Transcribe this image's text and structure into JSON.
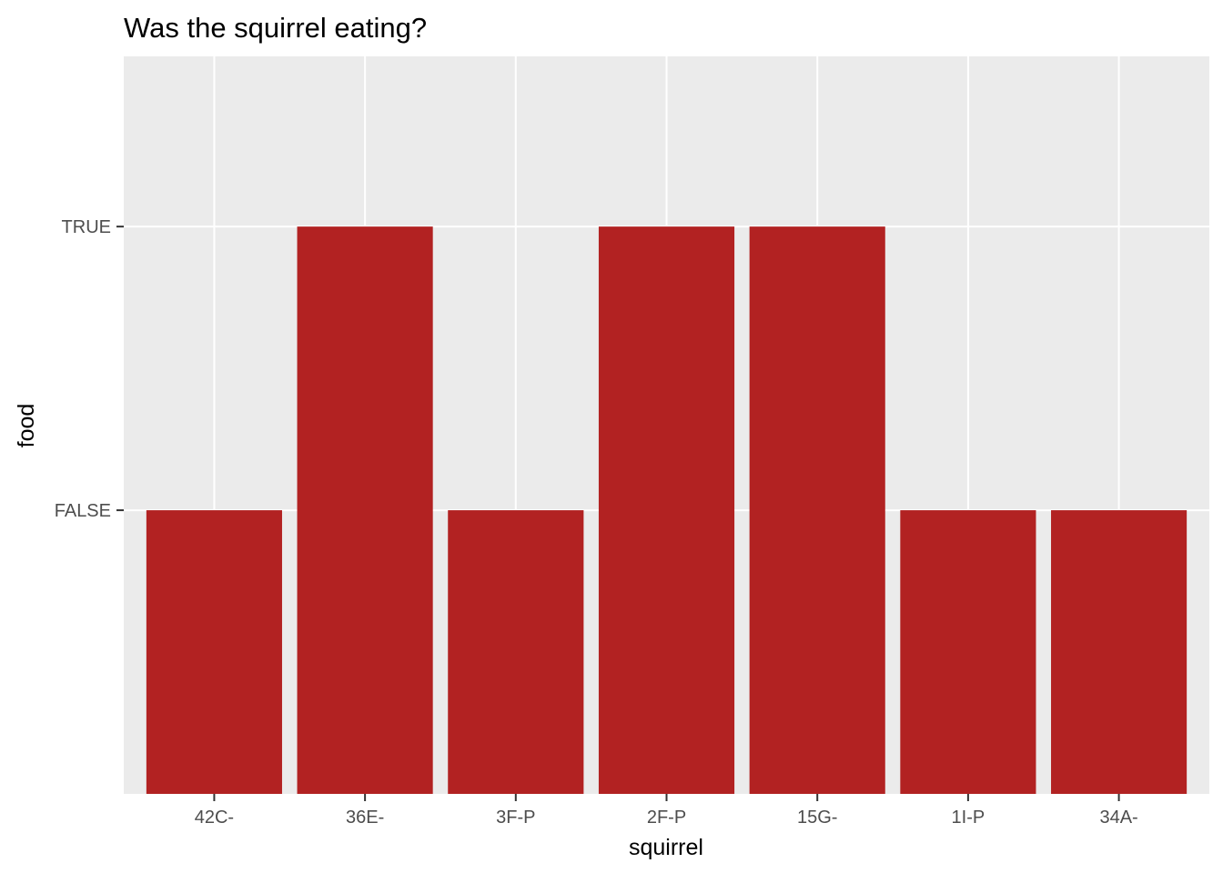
{
  "chart_data": {
    "type": "bar",
    "title": "Was the squirrel eating?",
    "xlabel": "squirrel",
    "ylabel": "food",
    "categories": [
      "42C-",
      "36E-",
      "3F-P",
      "2F-P",
      "15G-",
      "1I-P",
      "34A-"
    ],
    "values": [
      "FALSE",
      "TRUE",
      "FALSE",
      "TRUE",
      "TRUE",
      "FALSE",
      "FALSE"
    ],
    "y_levels": [
      "FALSE",
      "TRUE"
    ],
    "y_scale": "discrete",
    "grid": true,
    "legend": "none",
    "colors": {
      "bar": "#b22222",
      "panel": "#ebebeb",
      "grid": "#ffffff",
      "tick_text": "#4d4d4d",
      "tick_mark": "#333333",
      "text": "#000000"
    }
  }
}
